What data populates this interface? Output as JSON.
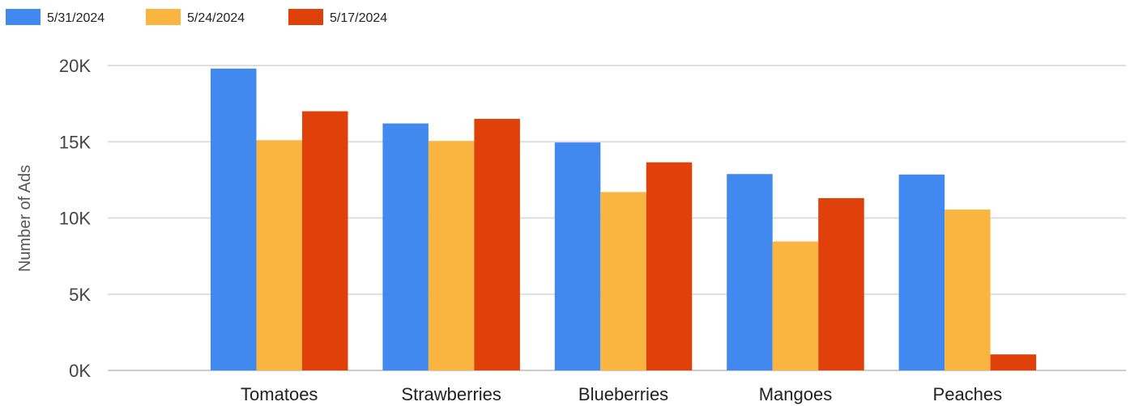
{
  "chart_data": {
    "type": "bar",
    "title": "",
    "xlabel": "",
    "ylabel": "Number of Ads",
    "categories": [
      "Tomatoes",
      "Strawberries",
      "Blueberries",
      "Mangoes",
      "Peaches"
    ],
    "series": [
      {
        "name": "5/31/2024",
        "color": "#4189EE",
        "values": [
          19800,
          16200,
          14950,
          12880,
          12850
        ]
      },
      {
        "name": "5/24/2024",
        "color": "#FAB440",
        "values": [
          15100,
          15050,
          11700,
          8460,
          10550
        ]
      },
      {
        "name": "5/17/2024",
        "color": "#E0410A",
        "values": [
          17000,
          16500,
          13650,
          11300,
          1050
        ]
      }
    ],
    "ylim": [
      0,
      20000
    ],
    "yticks": [
      0,
      5000,
      10000,
      15000,
      20000
    ],
    "ytick_labels": [
      "0K",
      "5K",
      "10K",
      "15K",
      "20K"
    ],
    "grid": true,
    "legend_position": "top-left"
  }
}
